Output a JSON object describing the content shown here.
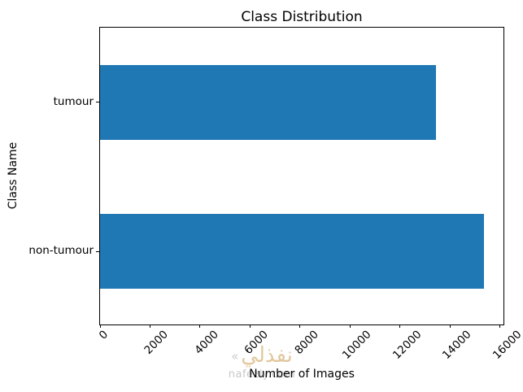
{
  "chart_data": {
    "type": "bar",
    "orientation": "horizontal",
    "title": "Class Distribution",
    "xlabel": "Number of Images",
    "ylabel": "Class Name",
    "categories": [
      "tumour",
      "non-tumour"
    ],
    "values": [
      13500,
      15400
    ],
    "xlim": [
      0,
      16200
    ],
    "xticks": [
      0,
      2000,
      4000,
      6000,
      8000,
      10000,
      12000,
      14000,
      16000
    ],
    "xtick_rotation": 45,
    "bar_color": "#1f77b4",
    "bar_height_fraction": 0.5,
    "grid": false,
    "legend": false,
    "text_color": "#000000"
  },
  "watermark": {
    "icon": "«",
    "logo": "نفذلي",
    "url": "nafezly.com"
  }
}
